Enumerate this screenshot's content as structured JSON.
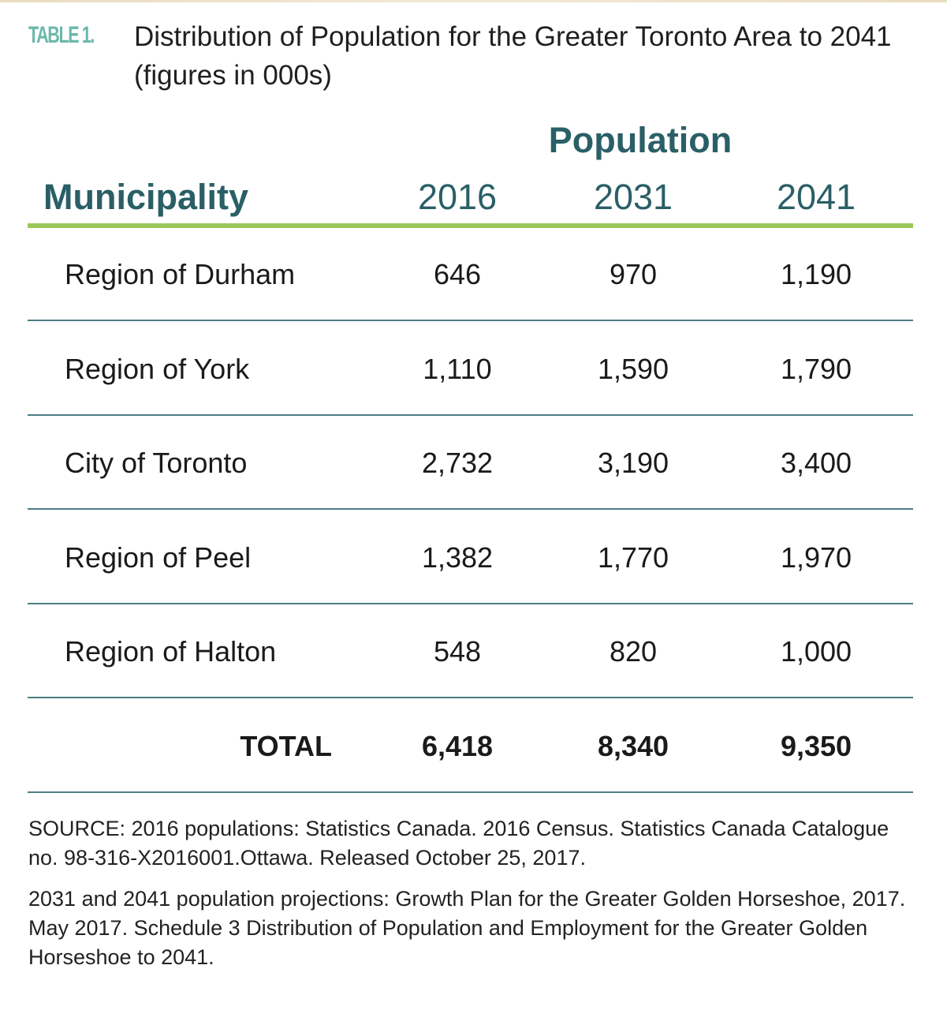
{
  "table": {
    "label": "TABLE 1.",
    "title": "Distribution of Population for the Greater Toronto Area to 2041 (figures in 000s)",
    "group_header": "Population",
    "columns": [
      "Municipality",
      "2016",
      "2031",
      "2041"
    ],
    "rows": [
      {
        "name": "Region of Durham",
        "values": [
          "646",
          "970",
          "1,190"
        ]
      },
      {
        "name": "Region of York",
        "values": [
          "1,110",
          "1,590",
          "1,790"
        ]
      },
      {
        "name": "City of Toronto",
        "values": [
          "2,732",
          "3,190",
          "3,400"
        ]
      },
      {
        "name": "Region of Peel",
        "values": [
          "1,382",
          "1,770",
          "1,970"
        ]
      },
      {
        "name": "Region of Halton",
        "values": [
          "548",
          "820",
          "1,000"
        ]
      }
    ],
    "total": {
      "name": "TOTAL",
      "values": [
        "6,418",
        "8,340",
        "9,350"
      ]
    }
  },
  "notes": {
    "source": "SOURCE: 2016 populations: Statistics Canada. 2016 Census. Statistics Canada Catalogue no. 98-316-X2016001.Ottawa. Released October 25, 2017.",
    "projections": "2031 and 2041 population projections: Growth Plan for the Greater Golden Horseshoe, 2017. May 2017. Schedule 3 Distribution of Population and Employment for the Greater Golden Horseshoe to 2041."
  },
  "colors": {
    "label": "#6bb8ab",
    "header": "#2a5f66",
    "header_rule": "#9bc75a",
    "row_rule": "#4d7d84"
  }
}
